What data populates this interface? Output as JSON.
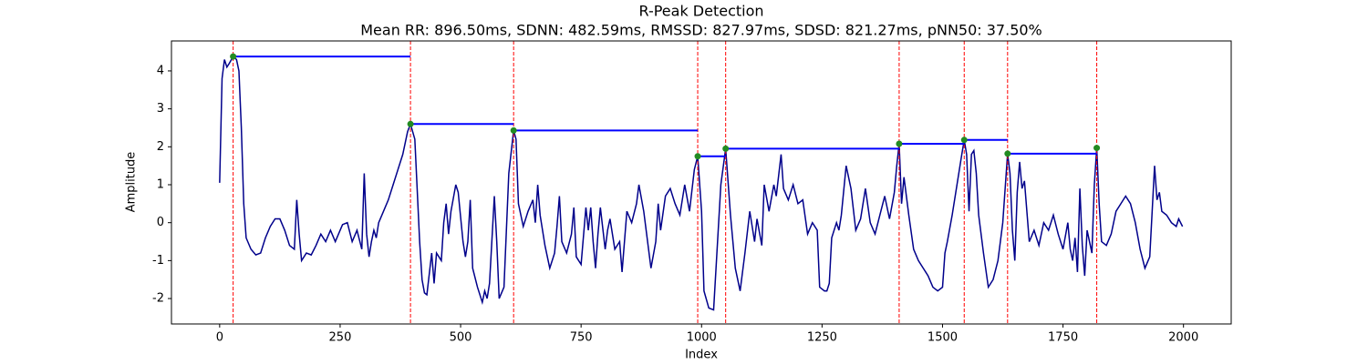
{
  "chart_data": {
    "type": "line",
    "title": "R-Peak Detection",
    "subtitle": "Mean RR: 896.50ms, SDNN: 482.59ms, RMSSD: 827.97ms, SDSD: 821.27ms, pNN50: 37.50%",
    "xlabel": "Index",
    "ylabel": "Amplitude",
    "xlim": [
      -100,
      2099
    ],
    "ylim": [
      -2.67,
      4.79
    ],
    "xticks": [
      0,
      250,
      500,
      750,
      1000,
      1250,
      1500,
      1750,
      2000
    ],
    "yticks": [
      -2,
      -1,
      0,
      1,
      2,
      3,
      4
    ],
    "x": [
      0,
      5,
      10,
      15,
      20,
      28,
      35,
      40,
      45,
      50,
      55,
      65,
      75,
      85,
      95,
      105,
      115,
      125,
      135,
      145,
      155,
      160,
      165,
      170,
      180,
      190,
      200,
      210,
      220,
      230,
      240,
      255,
      265,
      275,
      285,
      295,
      300,
      305,
      310,
      315,
      320,
      325,
      330,
      340,
      350,
      360,
      370,
      380,
      390,
      396,
      405,
      415,
      420,
      425,
      430,
      440,
      445,
      450,
      460,
      465,
      470,
      475,
      480,
      490,
      495,
      505,
      510,
      515,
      520,
      525,
      535,
      545,
      550,
      555,
      560,
      570,
      575,
      580,
      590,
      600,
      610,
      615,
      620,
      625,
      630,
      640,
      650,
      655,
      660,
      665,
      675,
      685,
      695,
      700,
      705,
      710,
      720,
      730,
      735,
      740,
      750,
      760,
      765,
      770,
      775,
      780,
      785,
      790,
      800,
      805,
      810,
      820,
      830,
      835,
      845,
      855,
      865,
      870,
      880,
      885,
      895,
      905,
      910,
      915,
      925,
      935,
      945,
      955,
      965,
      975,
      985,
      992,
      1000,
      1005,
      1015,
      1025,
      1030,
      1040,
      1050,
      1060,
      1070,
      1080,
      1090,
      1100,
      1110,
      1115,
      1125,
      1130,
      1140,
      1150,
      1155,
      1165,
      1170,
      1180,
      1190,
      1200,
      1210,
      1220,
      1230,
      1240,
      1245,
      1255,
      1260,
      1265,
      1270,
      1280,
      1285,
      1290,
      1300,
      1310,
      1320,
      1330,
      1340,
      1350,
      1360,
      1370,
      1380,
      1390,
      1400,
      1405,
      1410,
      1415,
      1420,
      1430,
      1440,
      1450,
      1460,
      1470,
      1480,
      1490,
      1500,
      1505,
      1510,
      1520,
      1530,
      1540,
      1545,
      1550,
      1555,
      1560,
      1565,
      1570,
      1575,
      1585,
      1595,
      1605,
      1615,
      1625,
      1635,
      1640,
      1645,
      1650,
      1655,
      1660,
      1665,
      1670,
      1680,
      1690,
      1700,
      1710,
      1720,
      1730,
      1740,
      1750,
      1760,
      1765,
      1770,
      1775,
      1780,
      1785,
      1790,
      1795,
      1800,
      1810,
      1815,
      1820,
      1825,
      1830,
      1840,
      1850,
      1860,
      1870,
      1880,
      1890,
      1900,
      1910,
      1920,
      1930,
      1940,
      1945,
      1950,
      1955,
      1965,
      1975,
      1985,
      1990,
      1998
    ],
    "series": [
      {
        "color": "#00008b",
        "values": [
          1.05,
          3.8,
          4.3,
          4.1,
          4.2,
          4.38,
          4.3,
          4.0,
          2.5,
          0.5,
          -0.4,
          -0.7,
          -0.85,
          -0.8,
          -0.4,
          -0.1,
          0.1,
          0.1,
          -0.2,
          -0.6,
          -0.7,
          0.6,
          -0.3,
          -1.0,
          -0.8,
          -0.85,
          -0.6,
          -0.3,
          -0.5,
          -0.2,
          -0.5,
          -0.05,
          0.0,
          -0.5,
          -0.2,
          -0.7,
          1.3,
          -0.3,
          -0.9,
          -0.5,
          -0.2,
          -0.4,
          0.0,
          0.3,
          0.6,
          1.0,
          1.4,
          1.8,
          2.4,
          2.6,
          2.2,
          -0.5,
          -1.5,
          -1.85,
          -1.9,
          -0.8,
          -1.6,
          -0.8,
          -1.0,
          0.0,
          0.5,
          -0.3,
          0.3,
          1.0,
          0.8,
          -0.5,
          -0.9,
          -0.5,
          0.6,
          -1.2,
          -1.7,
          -2.1,
          -1.8,
          -2.0,
          -1.6,
          0.7,
          -0.5,
          -2.0,
          -1.7,
          1.3,
          2.43,
          2.2,
          0.5,
          0.2,
          -0.1,
          0.3,
          0.6,
          0.0,
          1.0,
          0.2,
          -0.6,
          -1.2,
          -0.8,
          -0.1,
          0.7,
          -0.5,
          -0.8,
          -0.3,
          0.4,
          -0.9,
          -1.1,
          0.4,
          -0.2,
          0.4,
          -0.5,
          -1.2,
          -0.3,
          0.4,
          -0.7,
          -0.2,
          0.1,
          -0.7,
          -0.5,
          -1.3,
          0.3,
          0.0,
          0.5,
          1.0,
          0.3,
          -0.2,
          -1.2,
          -0.5,
          0.5,
          -0.2,
          0.7,
          0.9,
          0.5,
          0.2,
          1.0,
          0.3,
          1.4,
          1.75,
          0.3,
          -1.8,
          -2.25,
          -2.3,
          -1.2,
          1.0,
          1.95,
          0.2,
          -1.2,
          -1.8,
          -0.8,
          0.3,
          -0.5,
          0.1,
          -0.6,
          1.0,
          0.3,
          1.0,
          0.7,
          1.8,
          0.9,
          0.6,
          1.0,
          0.5,
          0.6,
          -0.3,
          0.0,
          -0.2,
          -1.7,
          -1.8,
          -1.8,
          -1.6,
          -0.4,
          0.0,
          -0.2,
          0.2,
          1.5,
          0.9,
          -0.2,
          0.1,
          0.9,
          0.0,
          -0.3,
          0.2,
          0.7,
          0.1,
          0.8,
          1.5,
          2.08,
          0.5,
          1.2,
          0.2,
          -0.7,
          -1.0,
          -1.2,
          -1.4,
          -1.7,
          -1.8,
          -1.7,
          -0.8,
          -0.5,
          0.2,
          1.0,
          1.8,
          2.18,
          1.8,
          0.3,
          1.8,
          1.9,
          1.3,
          0.2,
          -0.8,
          -1.7,
          -1.5,
          -1.0,
          0.0,
          1.82,
          1.3,
          -0.2,
          -1.0,
          0.8,
          1.6,
          0.9,
          1.1,
          -0.5,
          -0.2,
          -0.6,
          0.0,
          -0.2,
          0.2,
          -0.3,
          -0.7,
          0.0,
          -0.7,
          -1.0,
          -0.4,
          -1.3,
          0.9,
          -0.6,
          -1.4,
          -0.2,
          -0.8,
          1.0,
          1.97,
          0.5,
          -0.5,
          -0.6,
          -0.3,
          0.3,
          0.5,
          0.7,
          0.5,
          0.0,
          -0.7,
          -1.2,
          -0.9,
          1.5,
          0.6,
          0.8,
          0.3,
          0.2,
          0.0,
          -0.1,
          0.1,
          -0.1
        ]
      }
    ],
    "peaks": {
      "x": [
        28,
        396,
        610,
        992,
        1050,
        1410,
        1545,
        1635,
        1820
      ],
      "values": [
        4.38,
        2.6,
        2.43,
        1.75,
        1.95,
        2.08,
        2.18,
        1.82,
        1.97
      ],
      "color": "#228b22",
      "vline_color": "#ff0000",
      "hline_color": "#0000ff"
    }
  }
}
